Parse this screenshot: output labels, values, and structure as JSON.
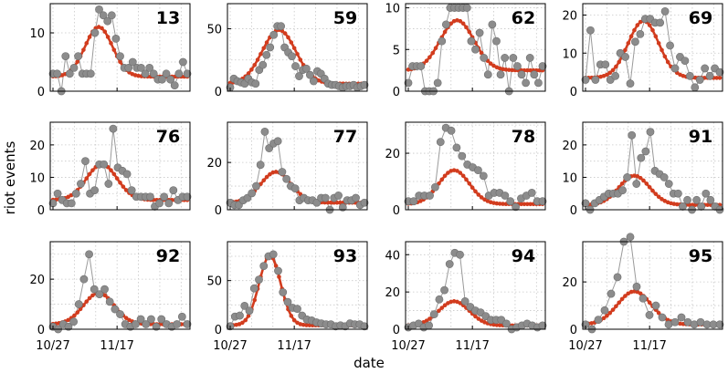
{
  "chart_data": {
    "type": "scatter",
    "xlabel": "date",
    "ylabel": "riot events",
    "x_tick_labels": [
      "10/27",
      "11/17"
    ],
    "x_tick_day_index": [
      0,
      21
    ],
    "n_days": 45,
    "grid": true,
    "colors": {
      "observed": "#8c8c8c",
      "observed_edge": "#6e6e6e",
      "fit": "#d23c1e",
      "frame": "#000000"
    },
    "panels": [
      {
        "id": "13",
        "ylim": [
          0,
          15
        ],
        "yticks": [
          0,
          10
        ],
        "observed": [
          3,
          3,
          0,
          6,
          3,
          4,
          6,
          3,
          3,
          3,
          10,
          14,
          13,
          12,
          13,
          9,
          6,
          4,
          4,
          5,
          4,
          4,
          3,
          4,
          3,
          2,
          2,
          3,
          2,
          1,
          3,
          5,
          3
        ],
        "fit": {
          "peak_day": 15,
          "amp": 8.5,
          "base": 2.5,
          "width": 4.5
        }
      },
      {
        "id": "59",
        "ylim": [
          0,
          70
        ],
        "yticks": [
          0,
          50
        ],
        "observed": [
          3,
          10,
          8,
          7,
          6,
          10,
          7,
          6,
          17,
          21,
          29,
          35,
          45,
          52,
          52,
          35,
          31,
          28,
          20,
          12,
          17,
          18,
          13,
          8,
          16,
          14,
          10,
          6,
          5,
          5,
          4,
          3,
          4,
          4,
          5,
          3,
          4,
          5
        ],
        "fit": {
          "peak_day": 16,
          "amp": 43,
          "base": 6,
          "width": 5.5
        }
      },
      {
        "id": "62",
        "ylim": [
          0,
          10.5
        ],
        "yticks": [
          0,
          5,
          10
        ],
        "observed": [
          1,
          3,
          3,
          3,
          0,
          0,
          0,
          1,
          6,
          8,
          10,
          10,
          10,
          10,
          10,
          6,
          5,
          7,
          4,
          2,
          8,
          6,
          2,
          4,
          0,
          4,
          3,
          2,
          1,
          4,
          2,
          1,
          3
        ],
        "fit": {
          "peak_day": 16,
          "amp": 6,
          "base": 2.5,
          "width": 5.5
        }
      },
      {
        "id": "69",
        "ylim": [
          0,
          23
        ],
        "yticks": [
          0,
          10,
          20
        ],
        "observed": [
          3,
          16,
          3,
          7,
          7,
          3,
          4,
          10,
          9,
          2,
          13,
          15,
          19,
          19,
          18,
          18,
          21,
          12,
          6,
          9,
          8,
          4,
          1,
          3,
          6,
          4,
          6,
          5
        ],
        "fit": {
          "peak_day": 19,
          "amp": 15,
          "base": 3.5,
          "width": 5
        }
      },
      {
        "id": "76",
        "ylim": [
          0,
          27
        ],
        "yticks": [
          0,
          10,
          20
        ],
        "observed": [
          2,
          5,
          3,
          2,
          2,
          5,
          8,
          15,
          5,
          6,
          14,
          14,
          8,
          25,
          13,
          12,
          11,
          6,
          4,
          4,
          4,
          4,
          1,
          2,
          4,
          2,
          6,
          3,
          4,
          4
        ],
        "fit": {
          "peak_day": 16,
          "amp": 11,
          "base": 3,
          "width": 5
        }
      },
      {
        "id": "77",
        "ylim": [
          0,
          37
        ],
        "yticks": [
          0,
          20
        ],
        "observed": [
          3,
          2,
          2,
          4,
          5,
          7,
          10,
          19,
          33,
          26,
          28,
          29,
          16,
          13,
          10,
          9,
          4,
          5,
          4,
          4,
          3,
          5,
          5,
          0,
          5,
          6,
          1,
          4,
          4,
          5,
          2,
          3
        ],
        "fit": {
          "peak_day": 15,
          "amp": 13,
          "base": 3,
          "width": 5
        }
      },
      {
        "id": "78",
        "ylim": [
          0,
          31
        ],
        "yticks": [
          0,
          20
        ],
        "observed": [
          3,
          3,
          5,
          5,
          5,
          8,
          24,
          29,
          28,
          22,
          19,
          16,
          15,
          14,
          12,
          5,
          6,
          6,
          5,
          3,
          1,
          4,
          5,
          6,
          3,
          3
        ],
        "fit": {
          "peak_day": 15,
          "amp": 12,
          "base": 2,
          "width": 5
        }
      },
      {
        "id": "91",
        "ylim": [
          0,
          27
        ],
        "yticks": [
          0,
          10,
          20
        ],
        "observed": [
          2,
          0,
          2,
          3,
          4,
          5,
          5,
          5,
          6,
          10,
          23,
          8,
          16,
          18,
          24,
          12,
          11,
          10,
          8,
          5,
          5,
          1,
          3,
          0,
          3,
          1,
          5,
          3,
          1,
          0
        ],
        "fit": {
          "peak_day": 16,
          "amp": 9,
          "base": 1.5,
          "width": 5
        }
      },
      {
        "id": "92",
        "ylim": [
          0,
          35
        ],
        "yticks": [
          0,
          20
        ],
        "observed": [
          1,
          0,
          2,
          1,
          3,
          10,
          20,
          30,
          16,
          14,
          16,
          11,
          8,
          6,
          2,
          1,
          2,
          4,
          2,
          4,
          1,
          4,
          2,
          1,
          2,
          5,
          2
        ],
        "fit": {
          "peak_day": 15,
          "amp": 12.5,
          "base": 2,
          "width": 5
        }
      },
      {
        "id": "93",
        "ylim": [
          0,
          90
        ],
        "yticks": [
          0,
          50
        ],
        "observed": [
          3,
          13,
          14,
          24,
          19,
          42,
          51,
          65,
          75,
          77,
          60,
          38,
          28,
          22,
          21,
          14,
          10,
          9,
          7,
          6,
          5,
          5,
          3,
          4,
          3,
          6,
          5,
          5,
          3
        ],
        "fit": {
          "peak_day": 13,
          "amp": 72,
          "base": 4,
          "width": 3.5
        }
      },
      {
        "id": "94",
        "ylim": [
          0,
          47
        ],
        "yticks": [
          0,
          20,
          40
        ],
        "observed": [
          1,
          2,
          3,
          1,
          2,
          8,
          16,
          21,
          35,
          41,
          40,
          15,
          12,
          10,
          9,
          7,
          5,
          5,
          5,
          3,
          0,
          1,
          2,
          3,
          2,
          1,
          2
        ],
        "fit": {
          "peak_day": 15,
          "amp": 13,
          "base": 2,
          "width": 5
        }
      },
      {
        "id": "95",
        "ylim": [
          0,
          37
        ],
        "yticks": [
          0,
          20
        ],
        "observed": [
          2,
          0,
          4,
          8,
          15,
          22,
          37,
          39,
          18,
          13,
          6,
          10,
          5,
          2,
          3,
          5,
          3,
          2,
          3,
          2,
          2,
          2
        ],
        "fit": {
          "peak_day": 16,
          "amp": 14,
          "base": 2,
          "width": 5.5
        }
      }
    ]
  }
}
